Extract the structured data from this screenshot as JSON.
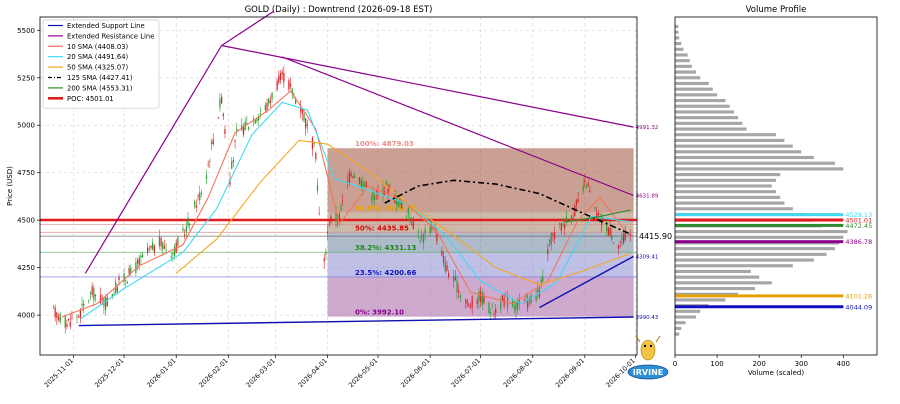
{
  "chart_data": [
    {
      "type": "candlestick",
      "title": "GOLD (Daily) : Downtrend (2026-09-18 EST)",
      "ylabel": "Price (USD)",
      "ylim": [
        3790,
        5570
      ],
      "xlim": [
        "2025-10-12",
        "2026-10-02"
      ],
      "grid": true,
      "legend_placement": "top-left",
      "y_ticks": [
        4000,
        4250,
        4500,
        4750,
        5000,
        5250,
        5500
      ],
      "x_ticks": [
        "2025-11-01",
        "2025-12-01",
        "2026-01-01",
        "2026-02-01",
        "2026-03-01",
        "2026-04-01",
        "2026-05-01",
        "2026-06-01",
        "2026-07-01",
        "2026-08-01",
        "2026-09-01",
        "2026-10-01"
      ],
      "legend": [
        {
          "label": "Extended Support Line",
          "color": "#1010b0",
          "style": "solid"
        },
        {
          "label": "Extended Resistance Line",
          "color": "#8b008b",
          "style": "solid"
        },
        {
          "label": "10 SMA (4408.03)",
          "color": "#f4735a",
          "style": "solid"
        },
        {
          "label": "20 SMA (4491.64)",
          "color": "#3fd8f0",
          "style": "solid"
        },
        {
          "label": "50 SMA (4325.07)",
          "color": "#f5a623",
          "style": "solid"
        },
        {
          "label": "125 SMA (4427.41)",
          "color": "#000000",
          "style": "dashdot"
        },
        {
          "label": "200 SMA (4553.31)",
          "color": "#2e8b2e",
          "style": "solid"
        },
        {
          "label": "POC: 4501.01",
          "color": "#e31a1c",
          "style": "thick"
        }
      ],
      "current_price_label": "4415.90",
      "support_line": {
        "points": [
          [
            "2025-11-04",
            3945
          ],
          [
            "2026-09-30",
            3990
          ]
        ],
        "end_label": "3990.43"
      },
      "support_line_2": {
        "points": [
          [
            "2026-08-05",
            4040
          ],
          [
            "2026-09-30",
            4309
          ]
        ],
        "end_label": "4309.41"
      },
      "resistance_lines": [
        {
          "points": [
            [
              "2025-11-08",
              4220
            ],
            [
              "2026-01-28",
              5420
            ],
            [
              "2026-02-28",
              5600
            ]
          ]
        },
        {
          "points": [
            [
              "2026-01-28",
              5420
            ],
            [
              "2026-09-30",
              4990
            ]
          ],
          "end_label": "4991.32"
        },
        {
          "points": [
            [
              "2026-03-05",
              5360
            ],
            [
              "2026-09-30",
              4630
            ]
          ],
          "end_label": "4631.89"
        }
      ],
      "horizontal_lines": [
        {
          "value": 4501,
          "color": "#e31a1c"
        },
        {
          "value": 4478,
          "color": "#d98a8a"
        },
        {
          "value": 4436,
          "color": "#d98a8a"
        },
        {
          "value": 4415.9,
          "color": "#555555"
        },
        {
          "value": 4331,
          "color": "#4caf50"
        },
        {
          "value": 4201,
          "color": "#7b7be0"
        }
      ],
      "fibonacci": {
        "x_range": [
          "2026-04-01",
          "2026-09-30"
        ],
        "levels": [
          {
            "label": "100%: 4879.03",
            "value": 4879.03,
            "color": "#f08c8c"
          },
          {
            "label": "61.8%: 4540.25",
            "value": 4540.25,
            "color": "#e8a000"
          },
          {
            "label": "50%: 4435.85",
            "value": 4435.85,
            "color": "#e00000"
          },
          {
            "label": "38.2%: 4331.13",
            "value": 4331.13,
            "color": "#1a8a1a"
          },
          {
            "label": "23.5%: 4200.66",
            "value": 4200.66,
            "color": "#1010c0"
          },
          {
            "label": "0%: 3992.10",
            "value": 3992.1,
            "color": "#8b008b"
          }
        ],
        "zone_colors": [
          "#a0523c",
          "#a08264",
          "#6e82a0",
          "#8c8cd2",
          "#a864a8"
        ]
      },
      "close_points": [
        [
          "2025-10-20",
          4020
        ],
        [
          "2025-10-28",
          3960
        ],
        [
          "2025-11-04",
          4000
        ],
        [
          "2025-11-12",
          4120
        ],
        [
          "2025-11-20",
          4060
        ],
        [
          "2025-11-28",
          4170
        ],
        [
          "2025-12-06",
          4230
        ],
        [
          "2025-12-14",
          4320
        ],
        [
          "2025-12-22",
          4380
        ],
        [
          "2025-12-30",
          4330
        ],
        [
          "2026-01-06",
          4440
        ],
        [
          "2026-01-12",
          4570
        ],
        [
          "2026-01-18",
          4700
        ],
        [
          "2026-01-24",
          4980
        ],
        [
          "2026-01-28",
          5150
        ],
        [
          "2026-02-02",
          4720
        ],
        [
          "2026-02-06",
          4950
        ],
        [
          "2026-02-12",
          5000
        ],
        [
          "2026-02-18",
          5050
        ],
        [
          "2026-02-24",
          5100
        ],
        [
          "2026-03-02",
          5220
        ],
        [
          "2026-03-06",
          5260
        ],
        [
          "2026-03-12",
          5160
        ],
        [
          "2026-03-17",
          5080
        ],
        [
          "2026-03-21",
          4950
        ],
        [
          "2026-03-25",
          4850
        ],
        [
          "2026-03-29",
          4200
        ],
        [
          "2026-04-02",
          4500
        ],
        [
          "2026-04-08",
          4520
        ],
        [
          "2026-04-15",
          4760
        ],
        [
          "2026-04-22",
          4700
        ],
        [
          "2026-04-29",
          4620
        ],
        [
          "2026-05-06",
          4680
        ],
        [
          "2026-05-13",
          4600
        ],
        [
          "2026-05-20",
          4520
        ],
        [
          "2026-05-27",
          4400
        ],
        [
          "2026-06-03",
          4480
        ],
        [
          "2026-06-10",
          4260
        ],
        [
          "2026-06-17",
          4150
        ],
        [
          "2026-06-24",
          4050
        ],
        [
          "2026-07-01",
          4100
        ],
        [
          "2026-07-08",
          4020
        ],
        [
          "2026-07-15",
          4080
        ],
        [
          "2026-07-22",
          4050
        ],
        [
          "2026-07-29",
          4070
        ],
        [
          "2026-08-05",
          4120
        ],
        [
          "2026-08-12",
          4400
        ],
        [
          "2026-08-19",
          4480
        ],
        [
          "2026-08-26",
          4550
        ],
        [
          "2026-09-02",
          4700
        ],
        [
          "2026-09-08",
          4520
        ],
        [
          "2026-09-14",
          4470
        ],
        [
          "2026-09-20",
          4380
        ],
        [
          "2026-09-28",
          4416
        ]
      ],
      "sma_series": [
        {
          "name": "10 SMA",
          "color": "#f4735a",
          "points": [
            [
              "2025-10-25",
              3990
            ],
            [
              "2025-11-15",
              4060
            ],
            [
              "2025-12-10",
              4260
            ],
            [
              "2026-01-05",
              4370
            ],
            [
              "2026-01-20",
              4620
            ],
            [
              "2026-02-05",
              4960
            ],
            [
              "2026-02-25",
              5080
            ],
            [
              "2026-03-10",
              5180
            ],
            [
              "2026-03-25",
              4980
            ],
            [
              "2026-04-08",
              4480
            ],
            [
              "2026-04-25",
              4680
            ],
            [
              "2026-05-15",
              4610
            ],
            [
              "2026-06-05",
              4440
            ],
            [
              "2026-06-25",
              4120
            ],
            [
              "2026-07-20",
              4060
            ],
            [
              "2026-08-10",
              4180
            ],
            [
              "2026-08-28",
              4500
            ],
            [
              "2026-09-10",
              4620
            ],
            [
              "2026-09-28",
              4408
            ]
          ]
        },
        {
          "name": "20 SMA",
          "color": "#3fd8f0",
          "points": [
            [
              "2025-11-05",
              3980
            ],
            [
              "2025-12-01",
              4140
            ],
            [
              "2026-01-05",
              4330
            ],
            [
              "2026-01-25",
              4560
            ],
            [
              "2026-02-15",
              4950
            ],
            [
              "2026-03-05",
              5120
            ],
            [
              "2026-03-20",
              5080
            ],
            [
              "2026-04-05",
              4720
            ],
            [
              "2026-04-25",
              4660
            ],
            [
              "2026-05-20",
              4580
            ],
            [
              "2026-06-10",
              4420
            ],
            [
              "2026-07-01",
              4180
            ],
            [
              "2026-07-25",
              4060
            ],
            [
              "2026-08-15",
              4170
            ],
            [
              "2026-09-05",
              4520
            ],
            [
              "2026-09-28",
              4492
            ]
          ]
        },
        {
          "name": "50 SMA",
          "color": "#f5a623",
          "points": [
            [
              "2026-01-01",
              4220
            ],
            [
              "2026-01-25",
              4400
            ],
            [
              "2026-02-20",
              4700
            ],
            [
              "2026-03-15",
              4920
            ],
            [
              "2026-04-01",
              4900
            ],
            [
              "2026-04-25",
              4760
            ],
            [
              "2026-05-20",
              4580
            ],
            [
              "2026-06-15",
              4420
            ],
            [
              "2026-07-10",
              4250
            ],
            [
              "2026-08-05",
              4160
            ],
            [
              "2026-08-30",
              4230
            ],
            [
              "2026-09-28",
              4325
            ]
          ]
        },
        {
          "name": "125 SMA",
          "color": "#000000",
          "dash": "6,3,2,3",
          "points": [
            [
              "2026-05-05",
              4590
            ],
            [
              "2026-05-25",
              4680
            ],
            [
              "2026-06-15",
              4710
            ],
            [
              "2026-07-10",
              4690
            ],
            [
              "2026-08-05",
              4640
            ],
            [
              "2026-08-30",
              4540
            ],
            [
              "2026-09-28",
              4427
            ]
          ]
        },
        {
          "name": "200 SMA",
          "color": "#2e8b2e",
          "points": [
            [
              "2026-08-20",
              4490
            ],
            [
              "2026-09-10",
              4520
            ],
            [
              "2026-09-28",
              4553
            ]
          ]
        }
      ]
    },
    {
      "type": "bar",
      "orientation": "horizontal",
      "title": "Volume Profile",
      "xlabel": "Volume (scaled)",
      "xlim": [
        0,
        480
      ],
      "x_ticks": [
        0,
        100,
        200,
        300,
        400
      ],
      "ylim": [
        3790,
        5570
      ],
      "bins_from": 3900,
      "bin_step": 30,
      "values": [
        10,
        15,
        25,
        50,
        60,
        80,
        120,
        150,
        190,
        230,
        200,
        180,
        280,
        330,
        360,
        380,
        390,
        400,
        410,
        350,
        330,
        310,
        280,
        260,
        250,
        240,
        230,
        240,
        250,
        400,
        380,
        330,
        300,
        280,
        260,
        240,
        170,
        160,
        150,
        140,
        130,
        120,
        100,
        90,
        80,
        60,
        50,
        40,
        35,
        30,
        20,
        15,
        10,
        8,
        8
      ],
      "labeled_levels": [
        {
          "value": 4529.13,
          "label": "4529.13",
          "color": "#3fd8f0"
        },
        {
          "value": 4501.01,
          "label": "4501.01",
          "color": "#e31a1c"
        },
        {
          "value": 4472.45,
          "label": "4472.45",
          "color": "#2e8b2e"
        },
        {
          "value": 4386.78,
          "label": "4386.78",
          "color": "#8b008b"
        },
        {
          "value": 4101.26,
          "label": "4101.26",
          "color": "#e8a000"
        },
        {
          "value": 4044.09,
          "label": "4044.09",
          "color": "#1010c0"
        }
      ]
    }
  ],
  "watermark": {
    "text": "IRVINE"
  }
}
